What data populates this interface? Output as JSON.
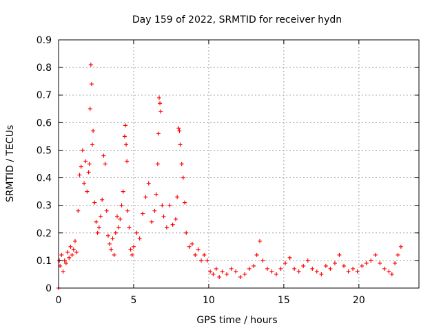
{
  "chart_data": {
    "type": "scatter",
    "title": "Day 159 of 2022, SRMTID for receiver hydn",
    "xlabel": "GPS time / hours",
    "ylabel": "SRMTID / TECUs",
    "xlim": [
      0,
      24
    ],
    "ylim": [
      0,
      0.9
    ],
    "xticks": [
      0,
      5,
      10,
      15,
      20
    ],
    "xtick_labels": [
      "0",
      "5",
      "10",
      "15",
      "20"
    ],
    "yticks": [
      0,
      0.1,
      0.2,
      0.3,
      0.4,
      0.5,
      0.6,
      0.7,
      0.8,
      0.9
    ],
    "ytick_labels": [
      "0",
      "0.1",
      "0.2",
      "0.3",
      "0.4",
      "0.5",
      "0.6",
      "0.7",
      "0.8",
      "0.9"
    ],
    "grid": true,
    "marker": "+",
    "color": "#ff0000",
    "series": [
      {
        "name": "SRMTID",
        "x": [
          0.0,
          0.05,
          0.1,
          0.2,
          0.3,
          0.4,
          0.5,
          0.6,
          0.7,
          0.8,
          0.9,
          1.0,
          1.1,
          1.2,
          1.3,
          1.4,
          1.5,
          1.6,
          1.7,
          1.8,
          1.9,
          2.0,
          2.05,
          2.1,
          2.15,
          2.2,
          2.25,
          2.3,
          2.4,
          2.5,
          2.6,
          2.7,
          2.8,
          2.9,
          3.0,
          3.1,
          3.2,
          3.3,
          3.4,
          3.5,
          3.6,
          3.7,
          3.8,
          3.9,
          4.0,
          4.1,
          4.2,
          4.3,
          4.4,
          4.45,
          4.5,
          4.55,
          4.6,
          4.7,
          4.8,
          4.9,
          5.0,
          5.2,
          5.4,
          5.6,
          5.8,
          6.0,
          6.2,
          6.4,
          6.5,
          6.6,
          6.65,
          6.7,
          6.75,
          6.8,
          6.9,
          7.0,
          7.2,
          7.4,
          7.6,
          7.8,
          7.9,
          8.0,
          8.05,
          8.1,
          8.2,
          8.3,
          8.4,
          8.5,
          8.7,
          8.9,
          9.1,
          9.3,
          9.5,
          9.7,
          9.9,
          10.1,
          10.3,
          10.5,
          10.7,
          10.9,
          11.2,
          11.5,
          11.8,
          12.1,
          12.4,
          12.7,
          13.0,
          13.2,
          13.4,
          13.6,
          13.9,
          14.2,
          14.5,
          14.8,
          15.1,
          15.4,
          15.7,
          16.0,
          16.3,
          16.6,
          16.9,
          17.2,
          17.5,
          17.8,
          18.1,
          18.4,
          18.7,
          19.0,
          19.3,
          19.6,
          19.9,
          20.2,
          20.5,
          20.8,
          21.1,
          21.4,
          21.7,
          22.0,
          22.2,
          22.4,
          22.6,
          22.8
        ],
        "y": [
          0.0,
          0.1,
          0.08,
          0.12,
          0.06,
          0.1,
          0.09,
          0.13,
          0.11,
          0.15,
          0.12,
          0.14,
          0.17,
          0.13,
          0.28,
          0.41,
          0.44,
          0.5,
          0.38,
          0.46,
          0.35,
          0.42,
          0.45,
          0.65,
          0.81,
          0.74,
          0.52,
          0.57,
          0.31,
          0.24,
          0.2,
          0.22,
          0.26,
          0.32,
          0.48,
          0.45,
          0.28,
          0.19,
          0.16,
          0.14,
          0.18,
          0.12,
          0.2,
          0.26,
          0.22,
          0.25,
          0.3,
          0.35,
          0.55,
          0.59,
          0.52,
          0.46,
          0.28,
          0.22,
          0.14,
          0.12,
          0.15,
          0.2,
          0.18,
          0.27,
          0.33,
          0.38,
          0.24,
          0.28,
          0.34,
          0.45,
          0.56,
          0.69,
          0.67,
          0.64,
          0.3,
          0.26,
          0.22,
          0.3,
          0.23,
          0.25,
          0.33,
          0.58,
          0.57,
          0.52,
          0.45,
          0.4,
          0.31,
          0.2,
          0.15,
          0.16,
          0.12,
          0.14,
          0.1,
          0.12,
          0.1,
          0.06,
          0.05,
          0.07,
          0.04,
          0.06,
          0.05,
          0.07,
          0.06,
          0.04,
          0.05,
          0.07,
          0.08,
          0.12,
          0.17,
          0.1,
          0.07,
          0.06,
          0.05,
          0.07,
          0.09,
          0.11,
          0.07,
          0.06,
          0.08,
          0.1,
          0.07,
          0.06,
          0.05,
          0.08,
          0.07,
          0.09,
          0.12,
          0.08,
          0.06,
          0.07,
          0.06,
          0.08,
          0.09,
          0.1,
          0.12,
          0.09,
          0.07,
          0.06,
          0.05,
          0.09,
          0.12,
          0.15
        ]
      }
    ]
  }
}
